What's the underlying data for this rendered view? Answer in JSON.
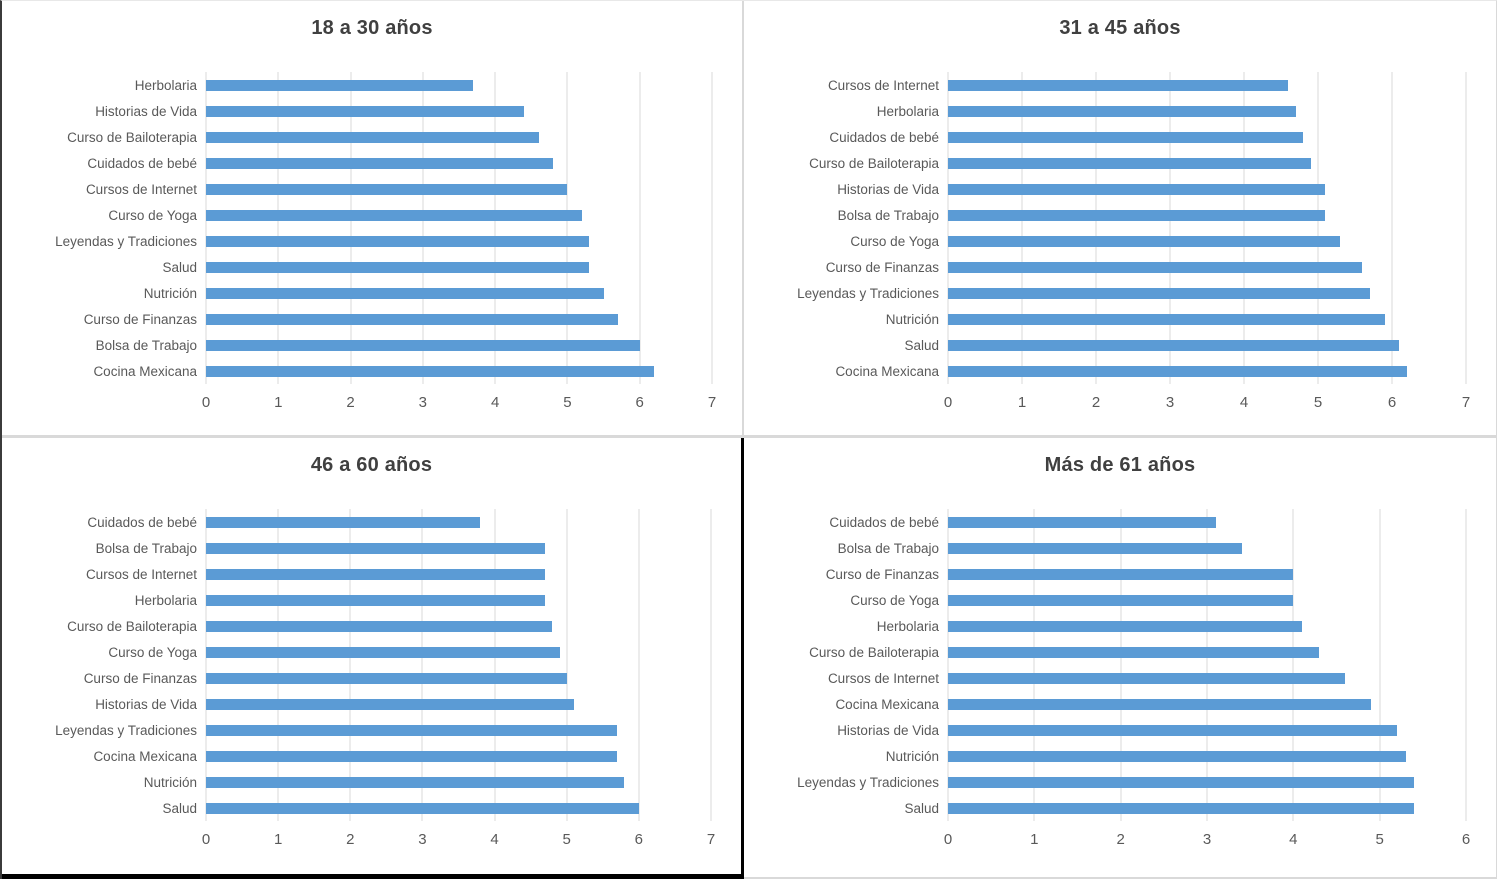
{
  "colors": {
    "bar": "#5B9BD5",
    "gridline": "#D9D9D9",
    "title_text": "#404040",
    "label_text": "#595959",
    "axis_text": "#595959",
    "divider_light": "#D9D9D9",
    "divider_dark": "#000000"
  },
  "chart_data": [
    {
      "type": "bar",
      "orientation": "horizontal",
      "title": "18 a 30 años",
      "xlabel": "",
      "ylabel": "",
      "xlim": [
        0,
        7
      ],
      "xticks": [
        0,
        1,
        2,
        3,
        4,
        5,
        6,
        7
      ],
      "grid": true,
      "legend": false,
      "categories": [
        "Herbolaria",
        "Historias de Vida",
        "Curso de Bailoterapia",
        "Cuidados de bebé",
        "Cursos de Internet",
        "Curso de Yoga",
        "Leyendas y Tradiciones",
        "Salud",
        "Nutrición",
        "Curso de Finanzas",
        "Bolsa de Trabajo",
        "Cocina Mexicana"
      ],
      "values": [
        3.7,
        4.4,
        4.6,
        4.8,
        5.0,
        5.2,
        5.3,
        5.3,
        5.5,
        5.7,
        6.0,
        6.2
      ]
    },
    {
      "type": "bar",
      "orientation": "horizontal",
      "title": "31 a 45 años",
      "xlabel": "",
      "ylabel": "",
      "xlim": [
        0,
        7
      ],
      "xticks": [
        0,
        1,
        2,
        3,
        4,
        5,
        6,
        7
      ],
      "grid": true,
      "legend": false,
      "categories": [
        "Cursos de Internet",
        "Herbolaria",
        "Cuidados de bebé",
        "Curso de Bailoterapia",
        "Historias de Vida",
        "Bolsa de Trabajo",
        "Curso de Yoga",
        "Curso de Finanzas",
        "Leyendas y Tradiciones",
        "Nutrición",
        "Salud",
        "Cocina Mexicana"
      ],
      "values": [
        4.6,
        4.7,
        4.8,
        4.9,
        5.1,
        5.1,
        5.3,
        5.6,
        5.7,
        5.9,
        6.1,
        6.2
      ]
    },
    {
      "type": "bar",
      "orientation": "horizontal",
      "title": "46 a 60 años",
      "xlabel": "",
      "ylabel": "",
      "xlim": [
        0,
        7
      ],
      "xticks": [
        0,
        1,
        2,
        3,
        4,
        5,
        6,
        7
      ],
      "grid": true,
      "legend": false,
      "categories": [
        "Cuidados de bebé",
        "Bolsa de Trabajo",
        "Cursos de Internet",
        "Herbolaria",
        "Curso de Bailoterapia",
        "Curso de Yoga",
        "Curso de Finanzas",
        "Historias de Vida",
        "Leyendas y Tradiciones",
        "Cocina Mexicana",
        "Nutrición",
        "Salud"
      ],
      "values": [
        3.8,
        4.7,
        4.7,
        4.7,
        4.8,
        4.9,
        5.0,
        5.1,
        5.7,
        5.7,
        5.8,
        6.0
      ]
    },
    {
      "type": "bar",
      "orientation": "horizontal",
      "title": "Más de 61 años",
      "xlabel": "",
      "ylabel": "",
      "xlim": [
        0,
        6
      ],
      "xticks": [
        0,
        1,
        2,
        3,
        4,
        5,
        6
      ],
      "grid": true,
      "legend": false,
      "categories": [
        "Cuidados de bebé",
        "Bolsa de Trabajo",
        "Curso de Finanzas",
        "Curso de Yoga",
        "Herbolaria",
        "Curso de Bailoterapia",
        "Cursos de Internet",
        "Cocina Mexicana",
        "Historias de Vida",
        "Nutrición",
        "Leyendas y Tradiciones",
        "Salud"
      ],
      "values": [
        3.1,
        3.4,
        4.0,
        4.0,
        4.1,
        4.3,
        4.6,
        4.9,
        5.2,
        5.3,
        5.4,
        5.4
      ]
    }
  ]
}
